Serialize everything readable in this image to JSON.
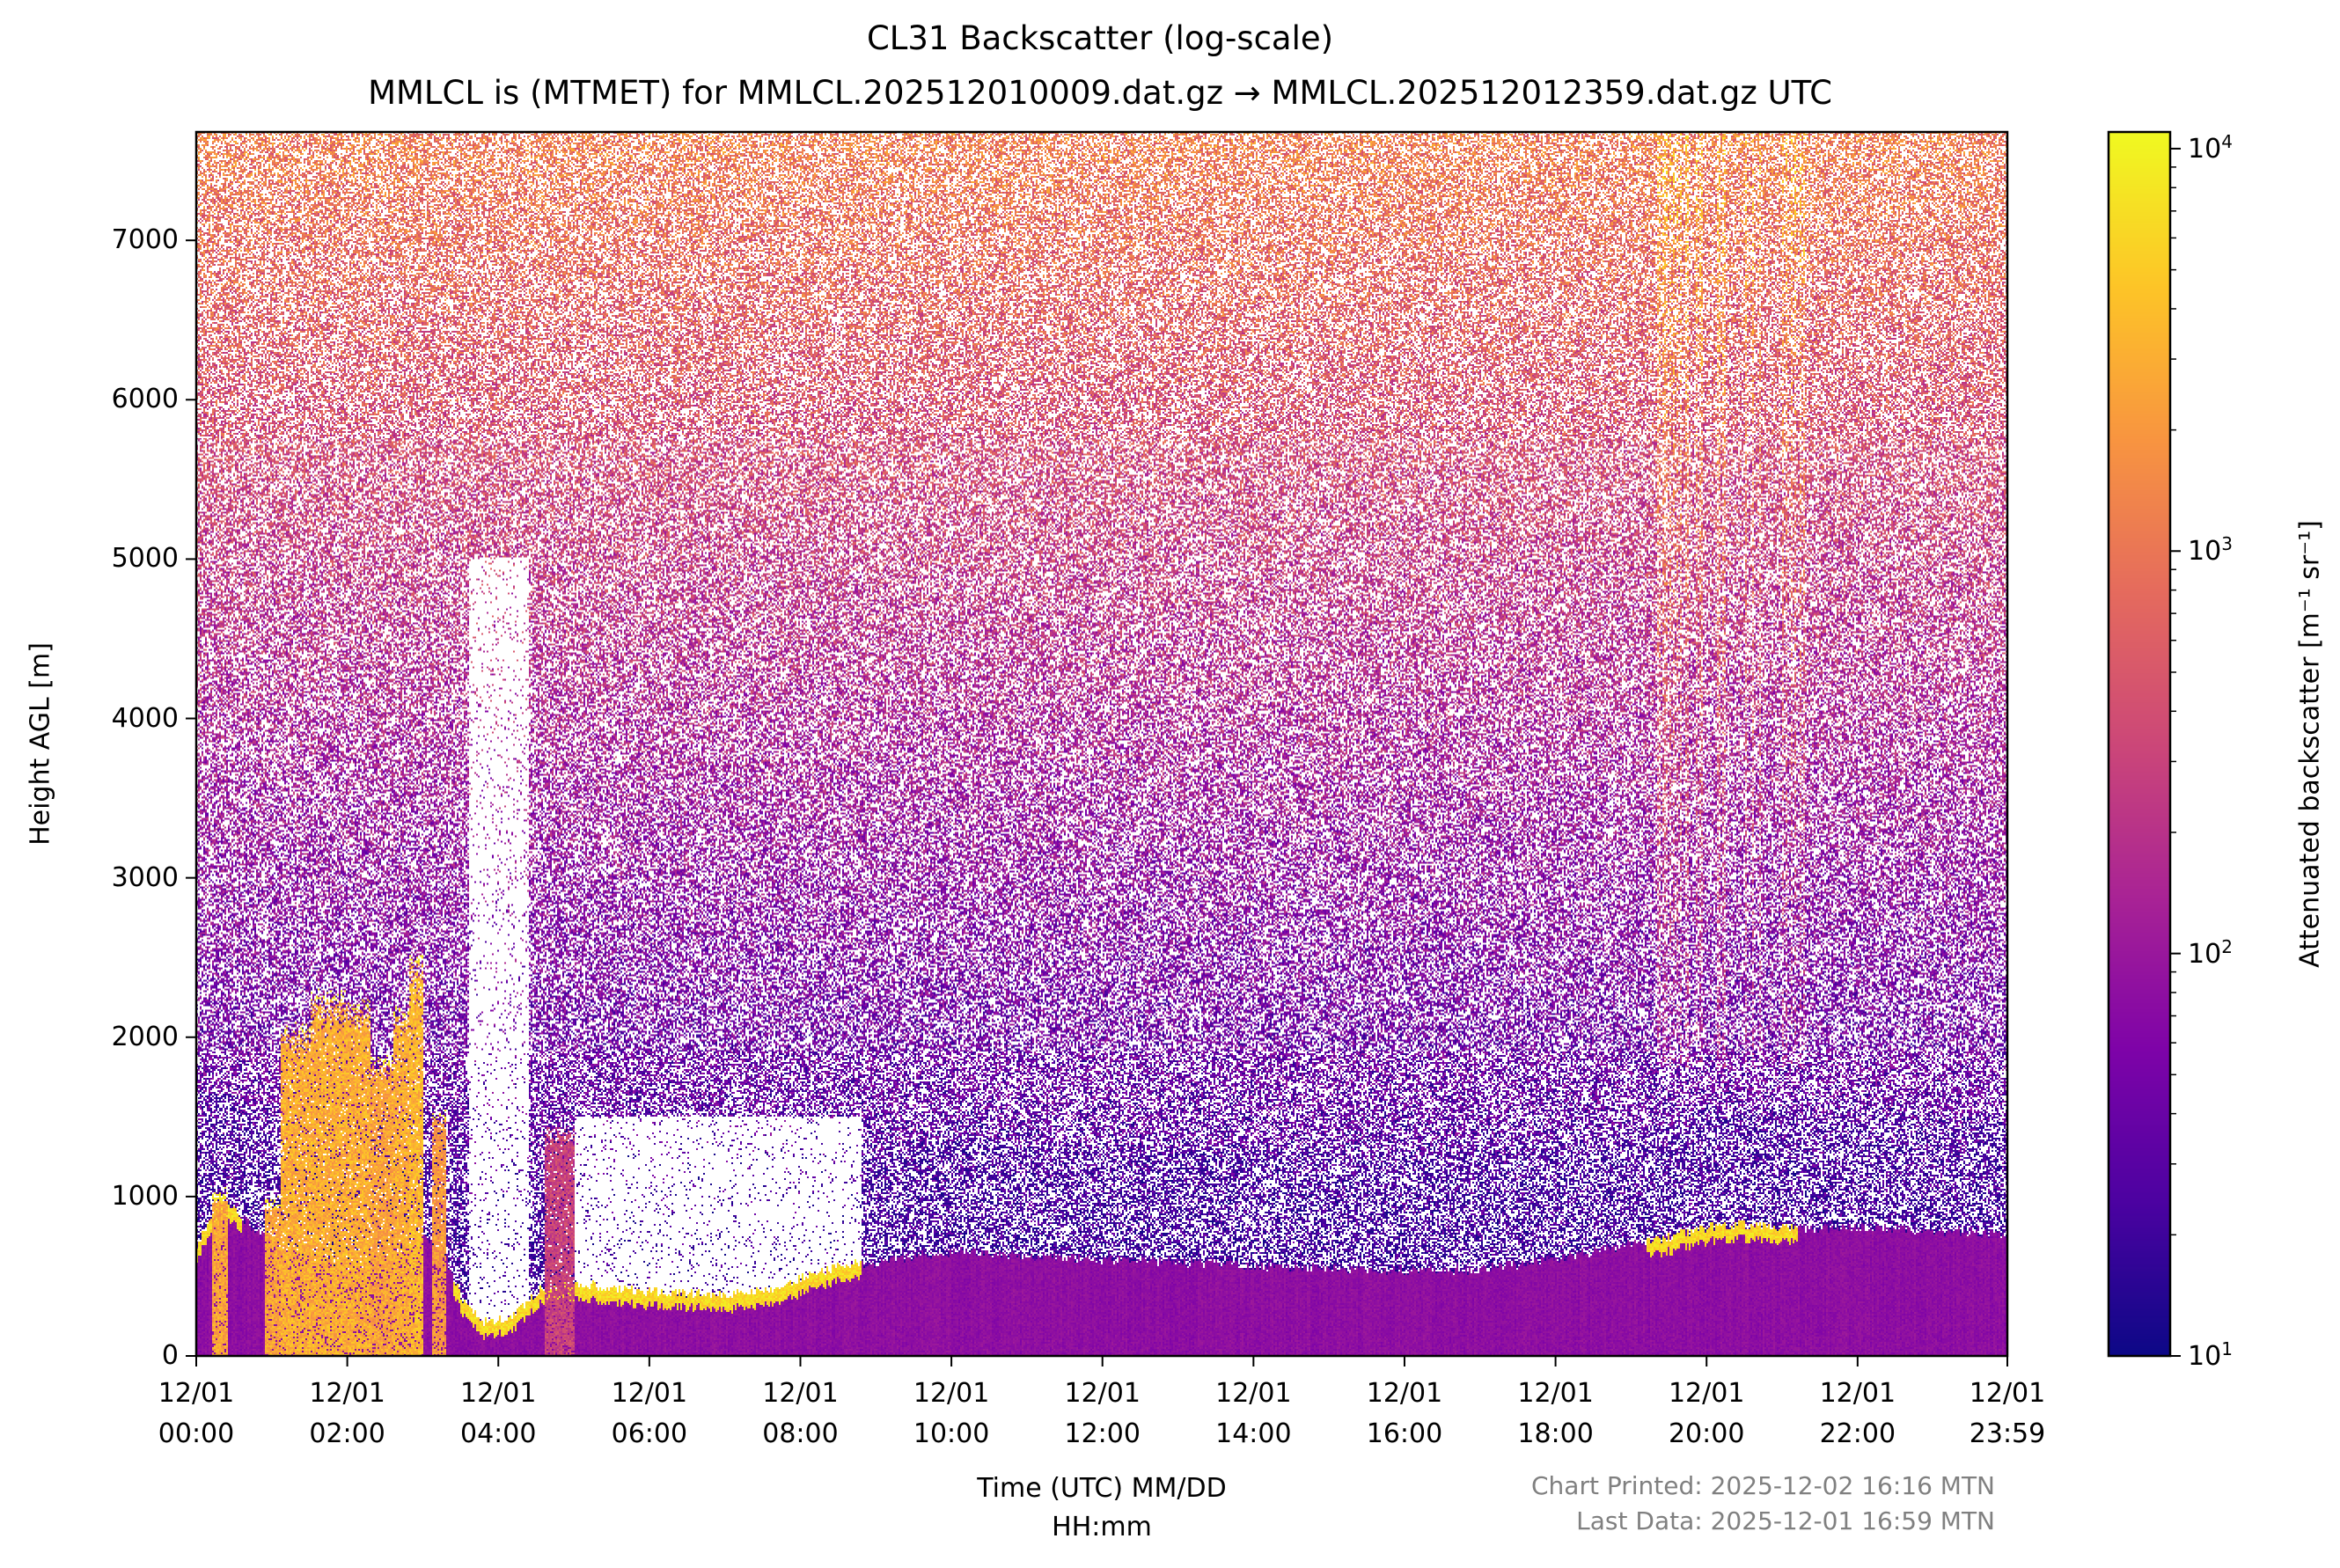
{
  "chart_data": {
    "type": "heatmap",
    "title": "CL31 Backscatter (log-scale)",
    "subtitle": "MMLCL is (MTMET) for MMLCL.202512010009.dat.gz → MMLCL.202512012359.dat.gz UTC",
    "xlabel_line1": "Time (UTC) MM/DD",
    "xlabel_line2": "HH:mm",
    "ylabel": "Height AGL [m]",
    "xlim_hours": [
      0,
      23.983
    ],
    "ylim": [
      0,
      7680
    ],
    "x_ticks": [
      {
        "hours": 0,
        "date": "12/01",
        "time": "00:00"
      },
      {
        "hours": 2,
        "date": "12/01",
        "time": "02:00"
      },
      {
        "hours": 4,
        "date": "12/01",
        "time": "04:00"
      },
      {
        "hours": 6,
        "date": "12/01",
        "time": "06:00"
      },
      {
        "hours": 8,
        "date": "12/01",
        "time": "08:00"
      },
      {
        "hours": 10,
        "date": "12/01",
        "time": "10:00"
      },
      {
        "hours": 12,
        "date": "12/01",
        "time": "12:00"
      },
      {
        "hours": 14,
        "date": "12/01",
        "time": "14:00"
      },
      {
        "hours": 16,
        "date": "12/01",
        "time": "16:00"
      },
      {
        "hours": 18,
        "date": "12/01",
        "time": "18:00"
      },
      {
        "hours": 20,
        "date": "12/01",
        "time": "20:00"
      },
      {
        "hours": 22,
        "date": "12/01",
        "time": "22:00"
      },
      {
        "hours": 23.983,
        "date": "12/01",
        "time": "23:59"
      }
    ],
    "y_ticks": [
      {
        "value": 0,
        "label": "0"
      },
      {
        "value": 1000,
        "label": "1000"
      },
      {
        "value": 2000,
        "label": "2000"
      },
      {
        "value": 3000,
        "label": "3000"
      },
      {
        "value": 4000,
        "label": "4000"
      },
      {
        "value": 5000,
        "label": "5000"
      },
      {
        "value": 6000,
        "label": "6000"
      },
      {
        "value": 7000,
        "label": "7000"
      }
    ],
    "colorbar": {
      "label": "Attenuated backscatter [m⁻¹ sr⁻¹]",
      "scale": "log",
      "colormap": "plasma",
      "range": [
        10,
        11000
      ],
      "ticks": [
        {
          "value": 10,
          "base": "10",
          "exp": "1"
        },
        {
          "value": 100,
          "base": "10",
          "exp": "2"
        },
        {
          "value": 1000,
          "base": "10",
          "exp": "3"
        },
        {
          "value": 10000,
          "base": "10",
          "exp": "4"
        }
      ],
      "colors": [
        "#0d0887",
        "#4c02a1",
        "#7e03a8",
        "#a92395",
        "#cc4778",
        "#e56b5d",
        "#f89540",
        "#fdc527",
        "#f0f921"
      ]
    },
    "boundary_layer_top_m": {
      "hours": [
        0,
        0.3,
        0.5,
        1,
        1.5,
        2,
        2.5,
        3,
        3.3,
        3.5,
        3.8,
        4.2,
        4.5,
        5,
        5.5,
        6,
        7,
        7.5,
        8,
        8.5,
        9,
        9.5,
        10,
        12,
        14,
        16,
        17,
        18,
        19,
        19.5,
        20,
        20.5,
        21,
        22,
        23,
        24
      ],
      "height": [
        700,
        950,
        900,
        700,
        600,
        550,
        600,
        750,
        600,
        350,
        200,
        250,
        400,
        450,
        420,
        400,
        380,
        400,
        480,
        560,
        580,
        620,
        650,
        600,
        560,
        520,
        540,
        600,
        700,
        740,
        800,
        820,
        800,
        800,
        780,
        760
      ]
    },
    "bright_layer_intervals_hours": [
      [
        0,
        0.6
      ],
      [
        3.4,
        8.8
      ],
      [
        19.2,
        21.2
      ]
    ],
    "cloud_events": [
      {
        "start": 0.2,
        "end": 0.4,
        "top": 1050,
        "value": 2500
      },
      {
        "start": 0.9,
        "end": 1.1,
        "top": 1000,
        "value": 2500
      },
      {
        "start": 1.1,
        "end": 1.5,
        "top": 2100,
        "value": 3000
      },
      {
        "start": 1.5,
        "end": 2.0,
        "top": 2300,
        "value": 3000
      },
      {
        "start": 2.0,
        "end": 2.3,
        "top": 2250,
        "value": 3000
      },
      {
        "start": 2.3,
        "end": 2.6,
        "top": 1900,
        "value": 2500
      },
      {
        "start": 2.6,
        "end": 2.8,
        "top": 2200,
        "value": 3000
      },
      {
        "start": 2.8,
        "end": 3.0,
        "top": 2550,
        "value": 3500
      },
      {
        "start": 3.1,
        "end": 3.3,
        "top": 1550,
        "value": 2000
      },
      {
        "start": 4.6,
        "end": 5.0,
        "top": 1450,
        "value": 300
      }
    ],
    "low_signal_intervals": [
      {
        "start": 3.6,
        "end": 4.4,
        "top": 5000
      },
      {
        "start": 5.0,
        "end": 8.8,
        "top": 1500
      }
    ],
    "enhanced_noise_interval_hours": [
      19.3,
      21.3
    ]
  },
  "footer": {
    "printed": "Chart Printed: 2025-12-02 16:16 MTN",
    "last_data": "Last Data: 2025-12-01 16:59 MTN"
  }
}
